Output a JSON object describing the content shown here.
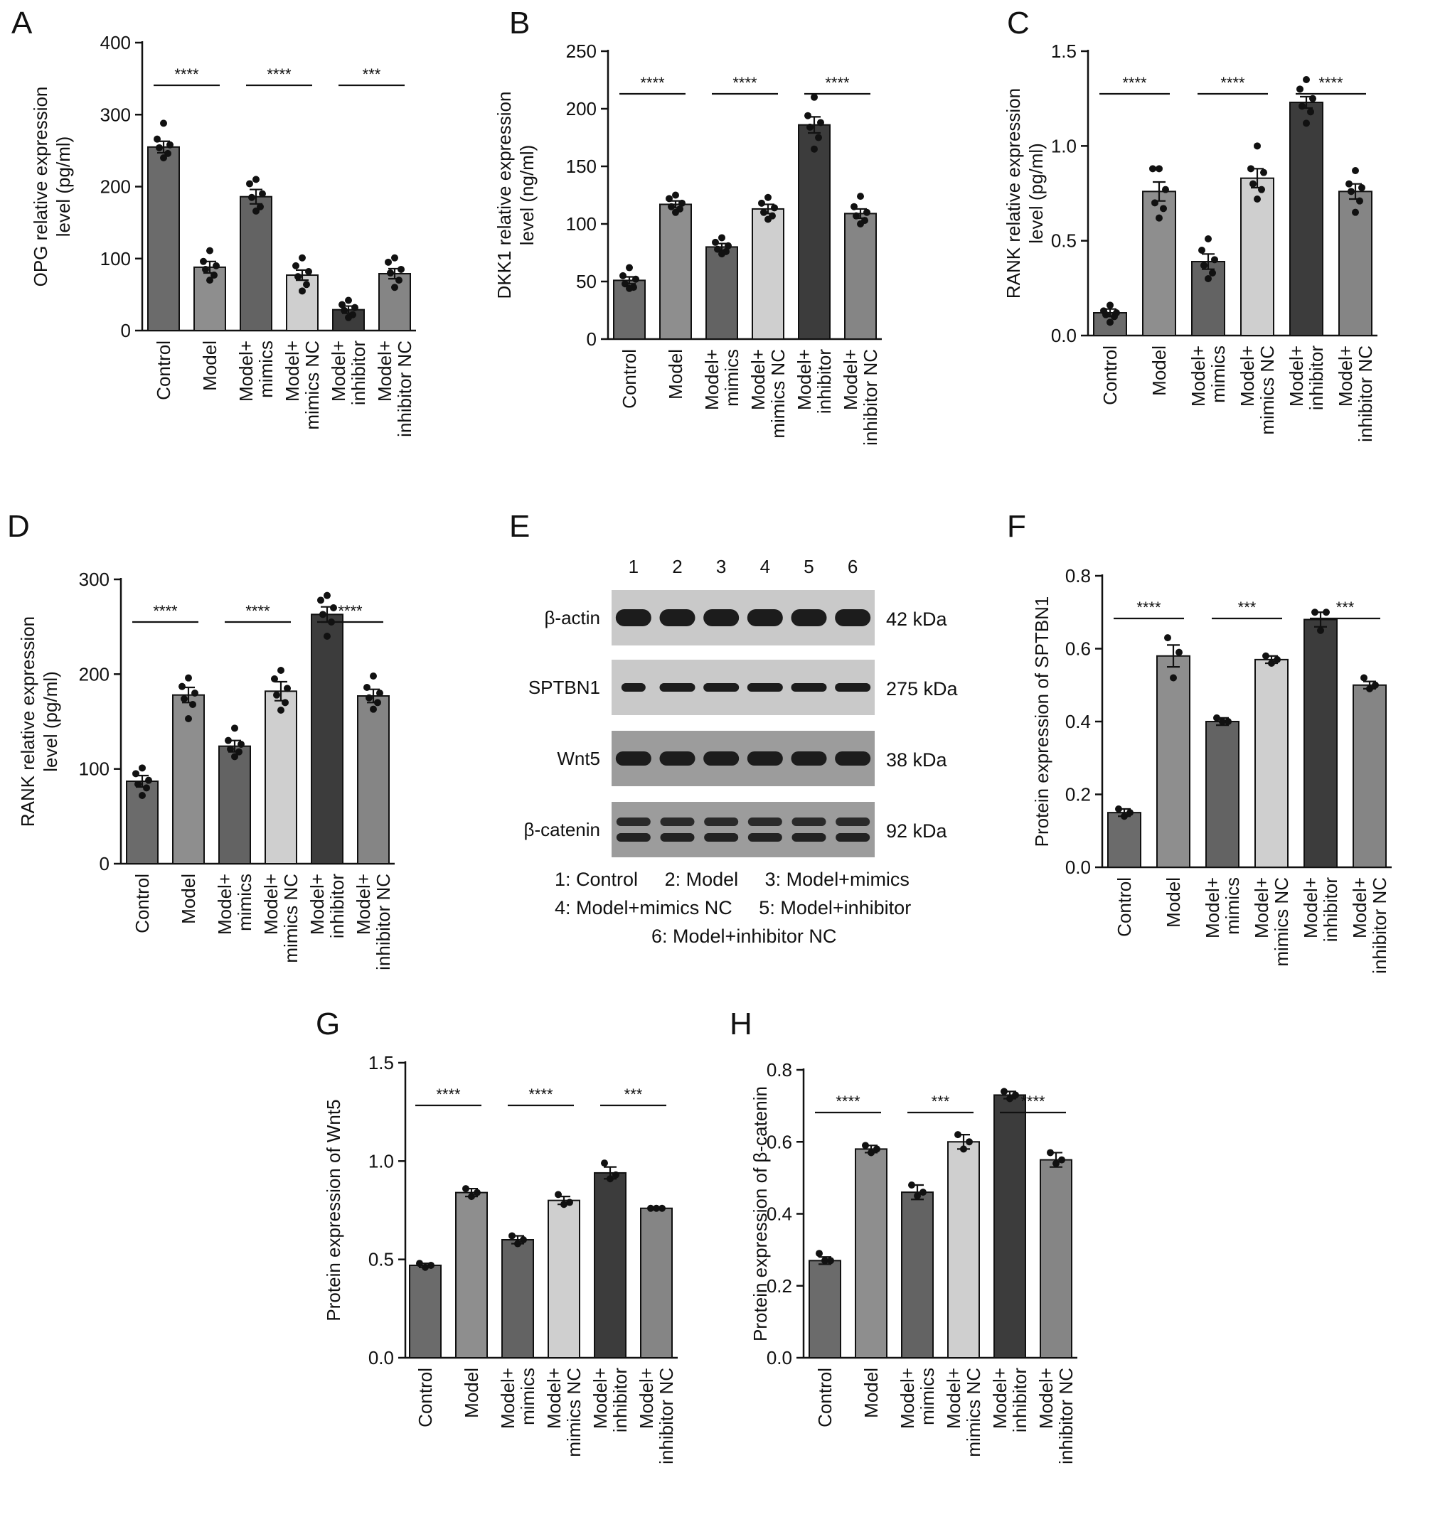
{
  "panels": {
    "A": "A",
    "B": "B",
    "C": "C",
    "D": "D",
    "E": "E",
    "F": "F",
    "G": "G",
    "H": "H"
  },
  "colors": {
    "Control": "#6b6b6b",
    "Model": "#8e8e8e",
    "Model+\nmimics": "#636363",
    "Model+\nmimics NC": "#cfcfcf",
    "Model+\ninhibitor": "#3c3c3c",
    "Model+\ninhibitor NC": "#858585"
  },
  "chart_data": [
    {
      "id": "A",
      "type": "bar",
      "categories": [
        "Control",
        "Model",
        "Model+\nmimics",
        "Model+\nmimics NC",
        "Model+\ninhibitor",
        "Model+\ninhibitor NC"
      ],
      "values": [
        255,
        88,
        186,
        77,
        29,
        79
      ],
      "errors": [
        8,
        8,
        10,
        7,
        5,
        7
      ],
      "points": [
        [
          288,
          266,
          258,
          254,
          246,
          240
        ],
        [
          111,
          96,
          90,
          85,
          77,
          70
        ],
        [
          210,
          204,
          190,
          185,
          172,
          166
        ],
        [
          101,
          90,
          82,
          75,
          64,
          55
        ],
        [
          42,
          36,
          32,
          28,
          22,
          18
        ],
        [
          101,
          95,
          85,
          80,
          70,
          60
        ]
      ],
      "ylabel": "OPG relative expression\nlevel (pg/ml)",
      "ylim": [
        0,
        400
      ],
      "yticks": [
        0,
        100,
        200,
        300,
        400
      ],
      "tick_labels": [
        "0",
        "100",
        "200",
        "300",
        "400"
      ],
      "sig": [
        {
          "pair": [
            0,
            1
          ],
          "label": "****"
        },
        {
          "pair": [
            2,
            3
          ],
          "label": "****"
        },
        {
          "pair": [
            4,
            5
          ],
          "label": "***"
        }
      ]
    },
    {
      "id": "B",
      "type": "bar",
      "categories": [
        "Control",
        "Model",
        "Model+\nmimics",
        "Model+\nmimics NC",
        "Model+\ninhibitor",
        "Model+\ninhibitor NC"
      ],
      "values": [
        51,
        117,
        80,
        113,
        186,
        109
      ],
      "errors": [
        3,
        3,
        3,
        4,
        7,
        4
      ],
      "points": [
        [
          62,
          55,
          52,
          48,
          45,
          44
        ],
        [
          125,
          122,
          118,
          115,
          113,
          110
        ],
        [
          88,
          84,
          81,
          78,
          76,
          74
        ],
        [
          123,
          118,
          114,
          110,
          107,
          104
        ],
        [
          210,
          194,
          188,
          184,
          175,
          165
        ],
        [
          124,
          115,
          110,
          107,
          103,
          100
        ]
      ],
      "ylabel": "DKK1 relative expression\nlevel (ng/ml)",
      "ylim": [
        0,
        250
      ],
      "yticks": [
        0,
        50,
        100,
        150,
        200,
        250
      ],
      "tick_labels": [
        "0",
        "50",
        "100",
        "150",
        "200",
        "250"
      ],
      "sig": [
        {
          "pair": [
            0,
            1
          ],
          "label": "****"
        },
        {
          "pair": [
            2,
            3
          ],
          "label": "****"
        },
        {
          "pair": [
            4,
            5
          ],
          "label": "****"
        }
      ]
    },
    {
      "id": "C",
      "type": "bar",
      "categories": [
        "Control",
        "Model",
        "Model+\nmimics",
        "Model+\nmimics NC",
        "Model+\ninhibitor",
        "Model+\ninhibitor NC"
      ],
      "values": [
        0.12,
        0.76,
        0.39,
        0.83,
        1.23,
        0.76
      ],
      "errors": [
        0.02,
        0.05,
        0.04,
        0.05,
        0.03,
        0.04
      ],
      "points": [
        [
          0.16,
          0.13,
          0.12,
          0.11,
          0.1,
          0.07
        ],
        [
          0.88,
          0.88,
          0.77,
          0.7,
          0.67,
          0.62
        ],
        [
          0.51,
          0.45,
          0.4,
          0.37,
          0.33,
          0.3
        ],
        [
          1.0,
          0.88,
          0.86,
          0.8,
          0.77,
          0.72
        ],
        [
          1.35,
          1.3,
          1.25,
          1.21,
          1.18,
          1.12
        ],
        [
          0.87,
          0.8,
          0.78,
          0.76,
          0.71,
          0.65
        ]
      ],
      "ylabel": "RANK relative expression\nlevel (pg/ml)",
      "ylim": [
        0,
        1.5
      ],
      "yticks": [
        0,
        0.5,
        1.0,
        1.5
      ],
      "tick_labels": [
        "0.0",
        "0.5",
        "1.0",
        "1.5"
      ],
      "sig": [
        {
          "pair": [
            0,
            1
          ],
          "label": "****"
        },
        {
          "pair": [
            2,
            3
          ],
          "label": "****"
        },
        {
          "pair": [
            4,
            5
          ],
          "label": "****"
        }
      ]
    },
    {
      "id": "D",
      "type": "bar",
      "categories": [
        "Control",
        "Model",
        "Model+\nmimics",
        "Model+\nmimics NC",
        "Model+\ninhibitor",
        "Model+\ninhibitor NC"
      ],
      "values": [
        87,
        178,
        124,
        182,
        263,
        177
      ],
      "errors": [
        6,
        8,
        6,
        10,
        8,
        7
      ],
      "points": [
        [
          101,
          95,
          88,
          84,
          80,
          72
        ],
        [
          196,
          187,
          180,
          174,
          168,
          153
        ],
        [
          143,
          130,
          126,
          121,
          118,
          113
        ],
        [
          204,
          195,
          185,
          178,
          170,
          162
        ],
        [
          283,
          278,
          270,
          263,
          255,
          240
        ],
        [
          198,
          186,
          180,
          175,
          170,
          163
        ]
      ],
      "ylabel": "RANK relative expression\nlevel (pg/ml)",
      "ylim": [
        0,
        300
      ],
      "yticks": [
        0,
        100,
        200,
        300
      ],
      "tick_labels": [
        "0",
        "100",
        "200",
        "300"
      ],
      "sig": [
        {
          "pair": [
            0,
            1
          ],
          "label": "****"
        },
        {
          "pair": [
            2,
            3
          ],
          "label": "****"
        },
        {
          "pair": [
            4,
            5
          ],
          "label": "****"
        }
      ]
    },
    {
      "id": "F",
      "type": "bar",
      "categories": [
        "Control",
        "Model",
        "Model+\nmimics",
        "Model+\nmimics NC",
        "Model+\ninhibitor",
        "Model+\ninhibitor NC"
      ],
      "values": [
        0.15,
        0.58,
        0.4,
        0.57,
        0.68,
        0.5
      ],
      "errors": [
        0.01,
        0.03,
        0.01,
        0.01,
        0.02,
        0.01
      ],
      "points": [
        [
          0.16,
          0.15,
          0.14
        ],
        [
          0.63,
          0.59,
          0.52
        ],
        [
          0.41,
          0.4,
          0.4
        ],
        [
          0.58,
          0.57,
          0.56
        ],
        [
          0.7,
          0.7,
          0.65
        ],
        [
          0.52,
          0.5,
          0.49
        ]
      ],
      "ylabel": "Protein expression of SPTBN1",
      "ylim": [
        0,
        0.8
      ],
      "yticks": [
        0,
        0.2,
        0.4,
        0.6,
        0.8
      ],
      "tick_labels": [
        "0.0",
        "0.2",
        "0.4",
        "0.6",
        "0.8"
      ],
      "sig": [
        {
          "pair": [
            0,
            1
          ],
          "label": "****"
        },
        {
          "pair": [
            2,
            3
          ],
          "label": "***"
        },
        {
          "pair": [
            4,
            5
          ],
          "label": "***"
        }
      ]
    },
    {
      "id": "G",
      "type": "bar",
      "categories": [
        "Control",
        "Model",
        "Model+\nmimics",
        "Model+\nmimics NC",
        "Model+\ninhibitor",
        "Model+\ninhibitor NC"
      ],
      "values": [
        0.47,
        0.84,
        0.6,
        0.8,
        0.94,
        0.76
      ],
      "errors": [
        0.01,
        0.02,
        0.02,
        0.02,
        0.03,
        0.005
      ],
      "points": [
        [
          0.48,
          0.47,
          0.46
        ],
        [
          0.86,
          0.84,
          0.82
        ],
        [
          0.62,
          0.6,
          0.58
        ],
        [
          0.83,
          0.79,
          0.78
        ],
        [
          0.99,
          0.93,
          0.91
        ],
        [
          0.76,
          0.76,
          0.76
        ]
      ],
      "ylabel": "Protein expression of Wnt5",
      "ylim": [
        0,
        1.5
      ],
      "yticks": [
        0,
        0.5,
        1.0,
        1.5
      ],
      "tick_labels": [
        "0.0",
        "0.5",
        "1.0",
        "1.5"
      ],
      "sig": [
        {
          "pair": [
            0,
            1
          ],
          "label": "****"
        },
        {
          "pair": [
            2,
            3
          ],
          "label": "****"
        },
        {
          "pair": [
            4,
            5
          ],
          "label": "***"
        }
      ]
    },
    {
      "id": "H",
      "type": "bar",
      "categories": [
        "Control",
        "Model",
        "Model+\nmimics",
        "Model+\nmimics NC",
        "Model+\ninhibitor",
        "Model+\ninhibitor NC"
      ],
      "values": [
        0.27,
        0.58,
        0.46,
        0.6,
        0.73,
        0.55
      ],
      "errors": [
        0.01,
        0.01,
        0.02,
        0.02,
        0.01,
        0.02
      ],
      "points": [
        [
          0.29,
          0.27,
          0.27
        ],
        [
          0.59,
          0.58,
          0.57
        ],
        [
          0.48,
          0.46,
          0.45
        ],
        [
          0.62,
          0.6,
          0.58
        ],
        [
          0.74,
          0.73,
          0.72
        ],
        [
          0.57,
          0.55,
          0.54
        ]
      ],
      "ylabel": "Protein expression of β-catenin",
      "ylim": [
        0,
        0.8
      ],
      "yticks": [
        0,
        0.2,
        0.4,
        0.6,
        0.8
      ],
      "tick_labels": [
        "0.0",
        "0.2",
        "0.4",
        "0.6",
        "0.8"
      ],
      "sig": [
        {
          "pair": [
            0,
            1
          ],
          "label": "****"
        },
        {
          "pair": [
            2,
            3
          ],
          "label": "***"
        },
        {
          "pair": [
            4,
            5
          ],
          "label": "****"
        }
      ]
    }
  ],
  "blot": {
    "lanes": [
      "1",
      "2",
      "3",
      "4",
      "5",
      "6"
    ],
    "rows": [
      {
        "label": "β-actin",
        "size": "42 kDa",
        "bands": 1
      },
      {
        "label": "SPTBN1",
        "size": "275 kDa",
        "bands": 1
      },
      {
        "label": "Wnt5",
        "size": "38 kDa",
        "bands": 1
      },
      {
        "label": "β-catenin",
        "size": "92 kDa",
        "bands": 2
      }
    ],
    "legend": [
      "1: Control     2: Model     3: Model+mimics",
      "4: Model+mimics NC     5: Model+inhibitor",
      "6: Model+inhibitor NC"
    ]
  }
}
